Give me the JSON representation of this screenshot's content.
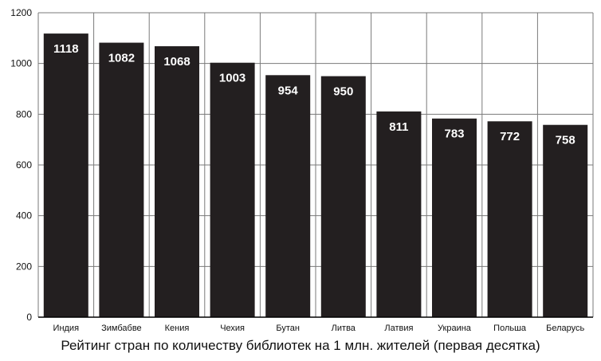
{
  "chart_data": {
    "type": "bar",
    "title": "Рейтинг стран по количеству библиотек на 1 млн. жителей (первая десятка)",
    "xlabel": "",
    "ylabel": "",
    "categories": [
      "Индия",
      "Зимбабве",
      "Кения",
      "Чехия",
      "Бутан",
      "Литва",
      "Латвия",
      "Украина",
      "Польша",
      "Беларусь"
    ],
    "series": [
      {
        "values": [
          1118,
          1082,
          1068,
          1003,
          954,
          950,
          811,
          783,
          772,
          758
        ]
      }
    ],
    "data_labels": [
      "1118",
      "1082",
      "1068",
      "1003",
      "954",
      "950",
      "811",
      "783",
      "772",
      "758"
    ],
    "yticks": [
      0,
      200,
      400,
      600,
      800,
      1000,
      1200
    ],
    "ylim": [
      0,
      1200
    ],
    "grid": true,
    "legend": "none",
    "colors": {
      "bar": "#231f20",
      "label": "#ffffff",
      "grid": "#7a7a7a",
      "axis": "#000000",
      "text": "#111111"
    }
  }
}
